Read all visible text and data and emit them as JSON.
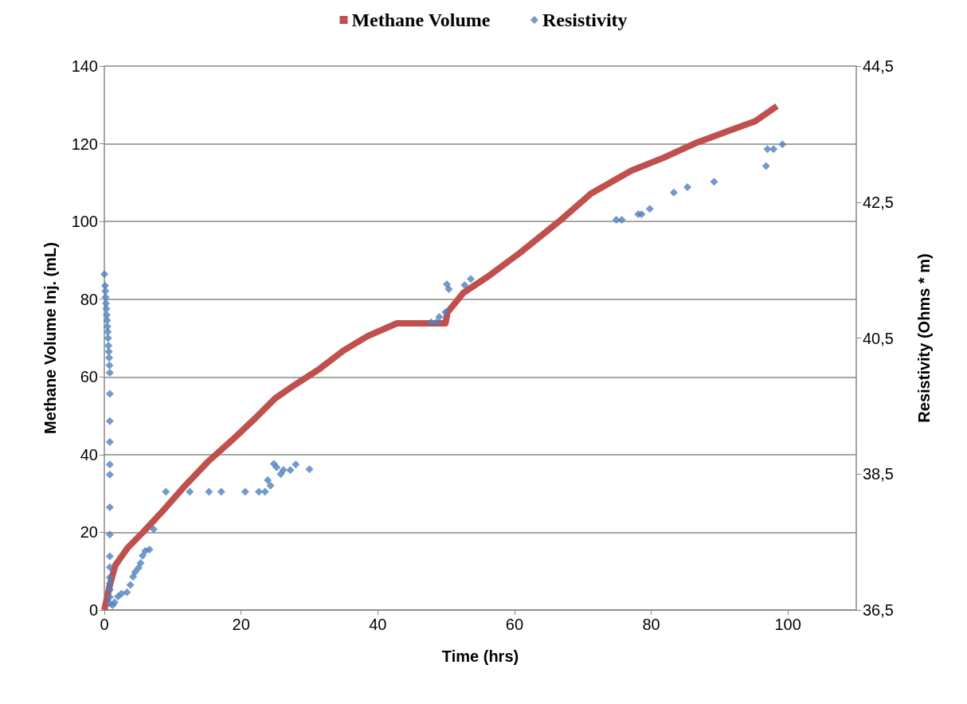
{
  "chart_data": {
    "type": "scatter",
    "xlabel": "Time (hrs)",
    "ylabel": "Methane Volume Inj. (mL)",
    "y2label": "Resistivity (Ohms * m)",
    "xlim": [
      0,
      110
    ],
    "xticks": [
      0,
      20,
      40,
      60,
      80,
      100
    ],
    "ylim": [
      0,
      140
    ],
    "yticks": [
      0,
      20,
      40,
      60,
      80,
      100,
      120,
      140
    ],
    "y2lim": [
      36.5,
      44.5
    ],
    "y2ticks": [
      {
        "value": 36.5,
        "label": "36,5"
      },
      {
        "value": 38.5,
        "label": "38,5"
      },
      {
        "value": 40.5,
        "label": "40,5"
      },
      {
        "value": 42.5,
        "label": "42,5"
      },
      {
        "value": 44.5,
        "label": "44,5"
      }
    ],
    "grid": "y",
    "legend": "top",
    "series": [
      {
        "name": "Methane Volume",
        "type": "line",
        "color": "#c0504d",
        "marker": "none",
        "line_style": "solid",
        "x": [
          0,
          0.8,
          1.6,
          3.4,
          5.8,
          8.7,
          11.6,
          15.1,
          18.6,
          22.1,
          25.0,
          27.9,
          31.5,
          35.0,
          38.5,
          42.8,
          49.9,
          50.2,
          52.5,
          56.0,
          60.7,
          66.5,
          71.2,
          77.1,
          81.8,
          86.4,
          91.1,
          95.2,
          98.4
        ],
        "values": [
          0,
          6.4,
          11.5,
          16,
          20.3,
          25.8,
          31.6,
          38.1,
          43.6,
          49.4,
          54.5,
          58,
          62.1,
          66.8,
          70.5,
          73.8,
          73.8,
          76.6,
          81.6,
          85.7,
          91.8,
          100,
          107.2,
          113.1,
          116.4,
          120.1,
          123.2,
          125.8,
          129.7
        ]
      },
      {
        "name": "Resistivity",
        "axis": "y2",
        "color": "#4f81bd",
        "marker": "diamond",
        "x": [
          0,
          0.1,
          0.15,
          0.2,
          0.25,
          0.3,
          0.35,
          0.4,
          0.45,
          0.5,
          0.55,
          0.6,
          0.65,
          0.7,
          0.75,
          0.8,
          0.8,
          0.8,
          0.8,
          0.8,
          0.8,
          0.8,
          0.8,
          0.8,
          0.8,
          0.8,
          0.8,
          0.8,
          0.8,
          0.8,
          1.2,
          1.5,
          2.0,
          2.5,
          3.3,
          3.8,
          4.2,
          4.5,
          5.0,
          5.3,
          5.6,
          6.0,
          6.6,
          7.2,
          9.0,
          12.5,
          15.3,
          17.1,
          20.6,
          22.6,
          23.5,
          23.9,
          24.3,
          24.8,
          25.2,
          25.8,
          26.2,
          27.2,
          28.0,
          30.0,
          47.8,
          48.6,
          49.0,
          49.9,
          50.1,
          50.4,
          52.7,
          53.6,
          74.9,
          75.7,
          78.1,
          78.6,
          79.8,
          83.3,
          85.3,
          89.2,
          96.8,
          97.0,
          97.9,
          99.2
        ],
        "values": [
          41.44,
          41.27,
          41.19,
          41.1,
          41.01,
          40.93,
          40.84,
          40.76,
          40.67,
          40.59,
          40.5,
          40.39,
          40.3,
          40.21,
          40.1,
          39.99,
          39.68,
          39.28,
          38.97,
          38.64,
          38.49,
          38.01,
          37.61,
          37.29,
          37.13,
          36.98,
          36.89,
          36.8,
          36.69,
          36.6,
          36.57,
          36.61,
          36.7,
          36.74,
          36.76,
          36.87,
          36.99,
          37.06,
          37.12,
          37.19,
          37.3,
          37.37,
          37.39,
          37.69,
          38.24,
          38.24,
          38.24,
          38.24,
          38.24,
          38.24,
          38.24,
          38.41,
          38.33,
          38.65,
          38.6,
          38.5,
          38.56,
          38.56,
          38.64,
          38.57,
          40.73,
          40.73,
          40.81,
          40.88,
          41.29,
          41.22,
          41.28,
          41.37,
          42.24,
          42.24,
          42.32,
          42.32,
          42.4,
          42.64,
          42.72,
          42.8,
          43.03,
          43.28,
          43.28,
          43.35
        ]
      }
    ]
  }
}
